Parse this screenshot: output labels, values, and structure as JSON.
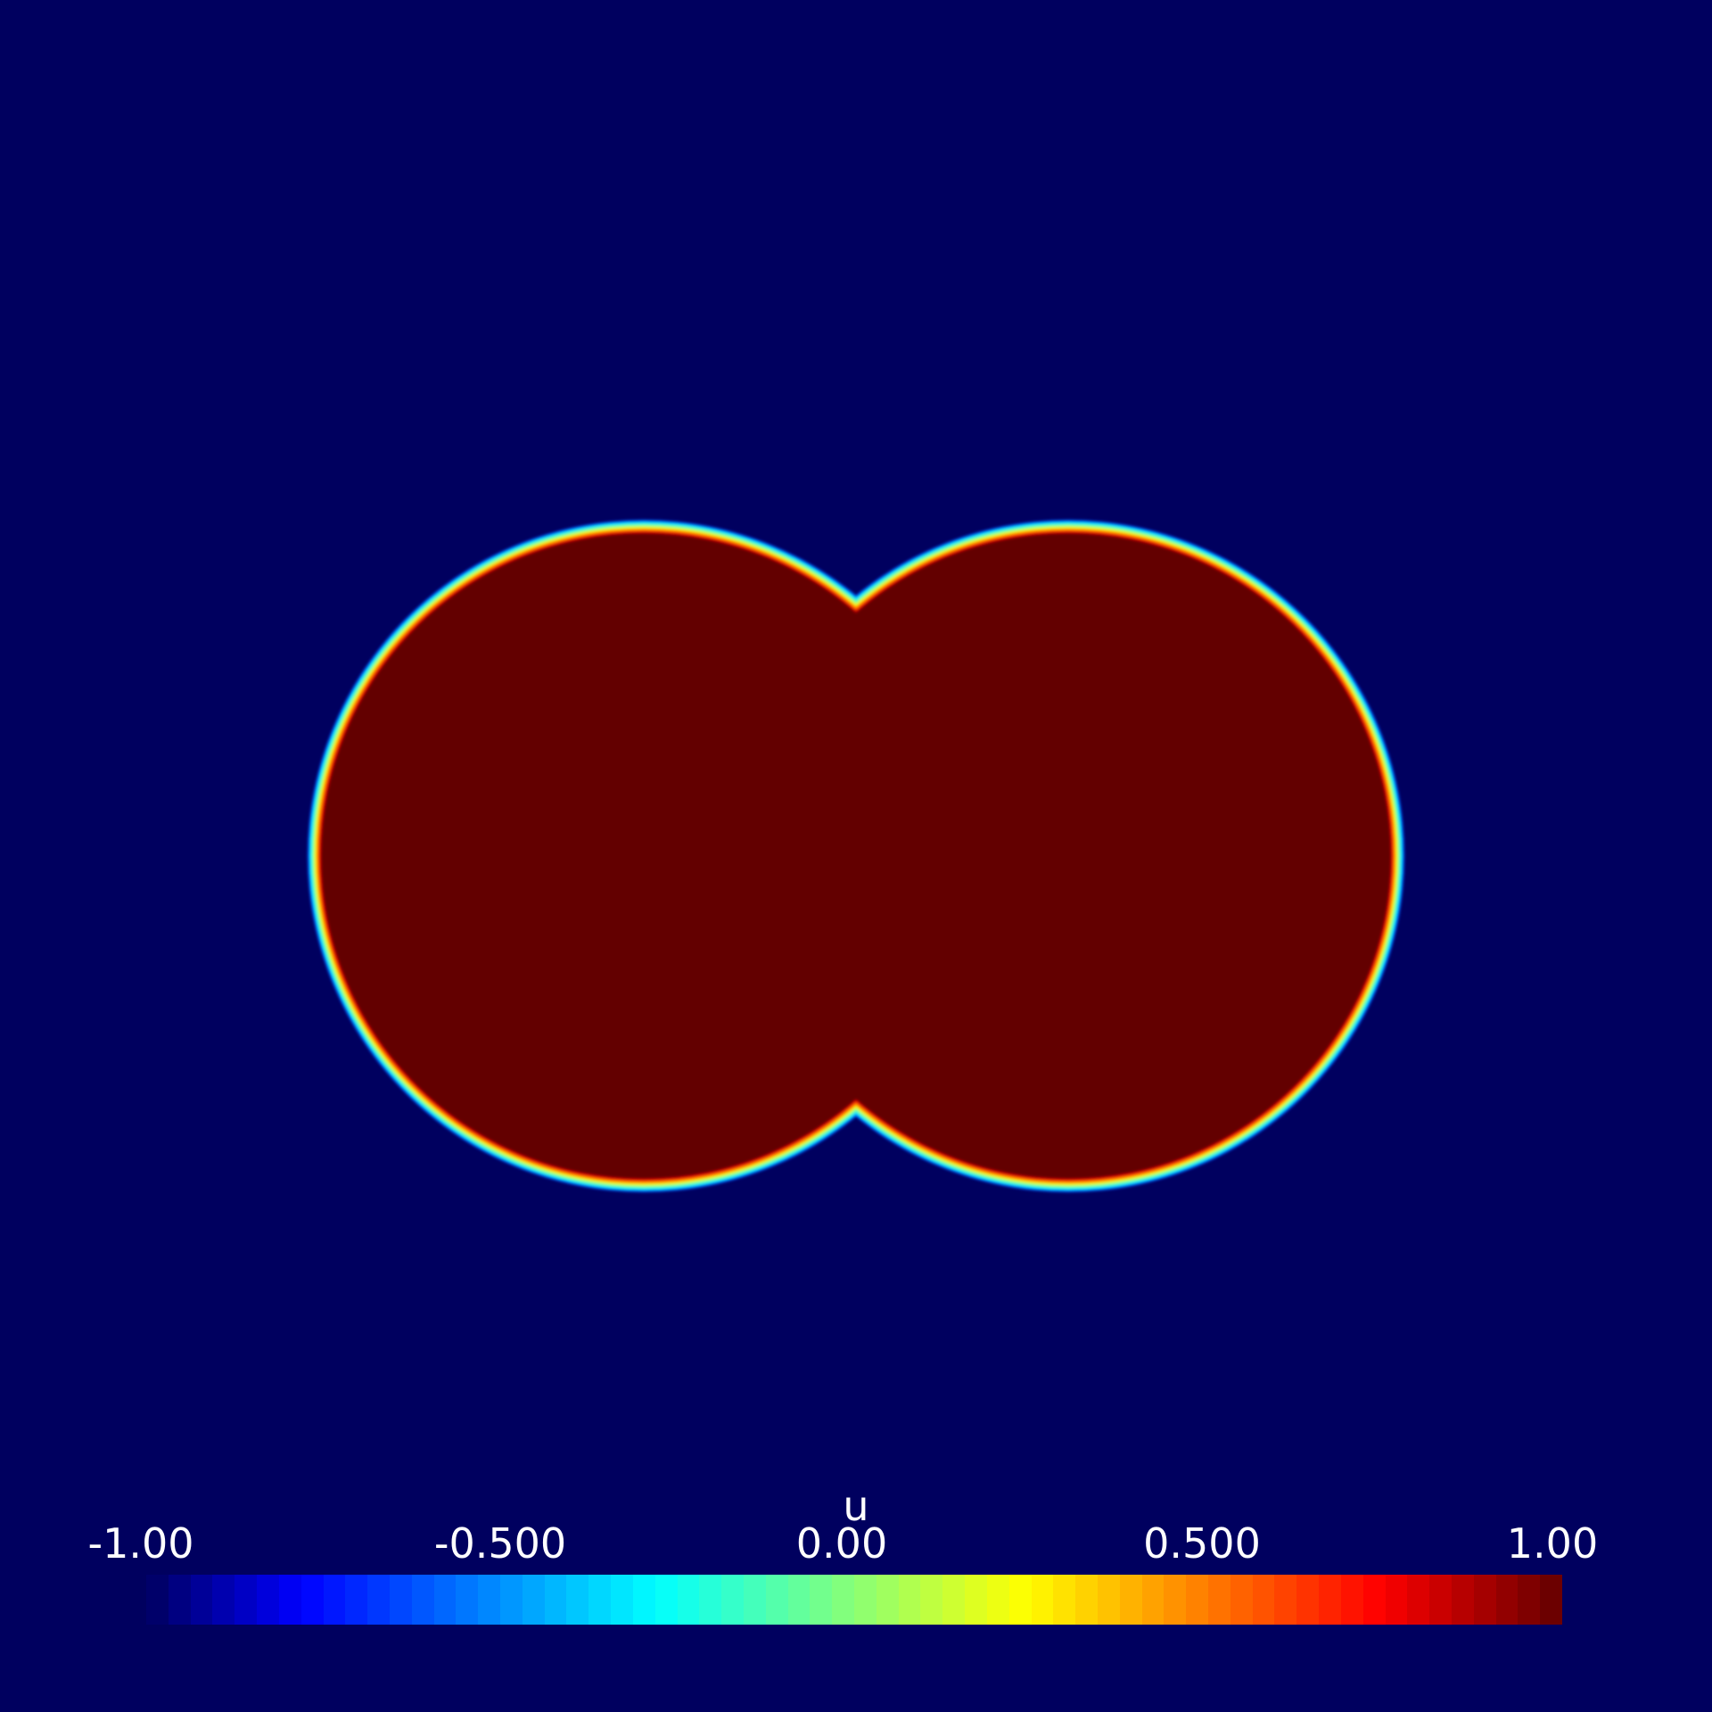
{
  "visualization": {
    "field_name": "u",
    "background_color": "#00005f",
    "interior_color": "#630000",
    "shape": "two overlapping discs (phase field)"
  },
  "colorbar": {
    "title": "u",
    "range": [
      -1.0,
      1.0
    ],
    "tick_labels": [
      "-1.00",
      "-0.500",
      "0.00",
      "0.500",
      "1.00"
    ],
    "tick_values": [
      -1.0,
      -0.5,
      0.0,
      0.5,
      1.0
    ],
    "colormap": "jet",
    "colormap_stops": [
      "#00005f",
      "#0000ff",
      "#00ffff",
      "#ffff00",
      "#ff0000",
      "#630000"
    ],
    "num_bins": 64
  }
}
